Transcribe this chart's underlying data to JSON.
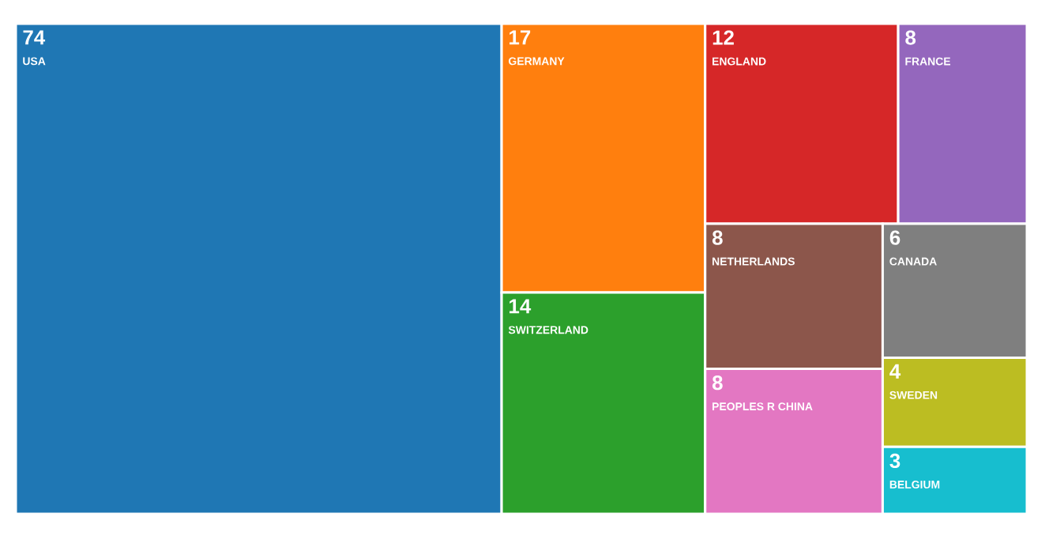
{
  "chart_data": {
    "type": "other",
    "categories": [
      "USA",
      "GERMANY",
      "SWITZERLAND",
      "ENGLAND",
      "FRANCE",
      "NETHERLANDS",
      "PEOPLES R CHINA",
      "CANADA",
      "SWEDEN",
      "BELGIUM"
    ],
    "values": [
      74,
      17,
      14,
      12,
      8,
      8,
      8,
      6,
      4,
      3
    ],
    "colors": [
      "#1f77b4",
      "#ff7f0e",
      "#2ca02c",
      "#d62728",
      "#9467bd",
      "#8c564b",
      "#e377c2",
      "#7f7f7f",
      "#bcbd22",
      "#17becf"
    ],
    "data_labels": true
  }
}
